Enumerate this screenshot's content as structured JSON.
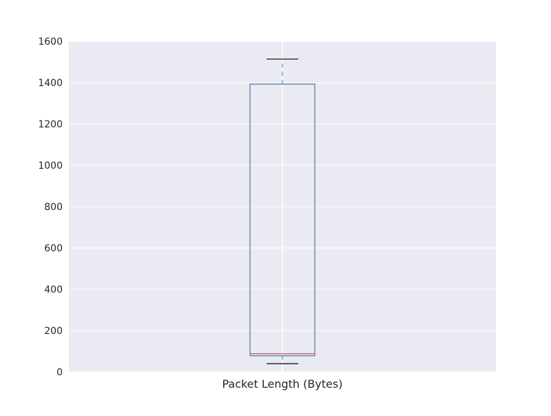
{
  "chart_data": {
    "type": "boxplot",
    "title": "",
    "xlabel": "",
    "ylabel": "",
    "ylim": [
      0,
      1600
    ],
    "yticks": [
      0,
      200,
      400,
      600,
      800,
      1000,
      1200,
      1400,
      1600
    ],
    "grid": true,
    "legend": "none",
    "categories": [
      "Packet Length (Bytes)"
    ],
    "series": [
      {
        "whisker_low": 40,
        "q1": 78,
        "median": 88,
        "q3": 1393,
        "whisker_high": 1514
      }
    ]
  },
  "colors": {
    "background": "#EAEAF2",
    "grid": "#FFFFFF",
    "box": "#4C72B0",
    "median": "#C44E52",
    "whisker": "#4C72B0",
    "caps": "#000000",
    "text": "#262626"
  }
}
